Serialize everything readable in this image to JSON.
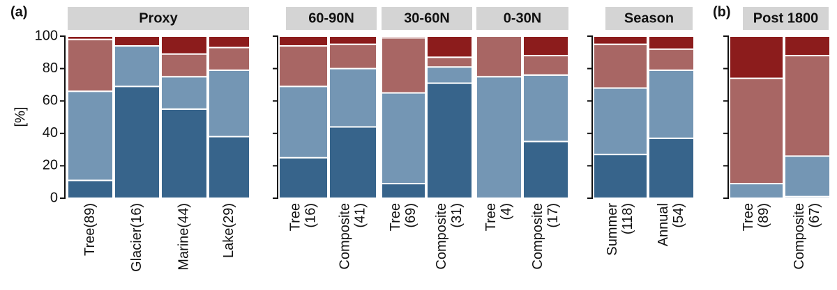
{
  "chart_data": [
    {
      "type": "bar",
      "stacked": true,
      "panel_label": "(a)",
      "title": "Proxy",
      "ylabel": "[%]",
      "ylim": [
        0,
        100
      ],
      "yticks": [
        0,
        20,
        40,
        60,
        80,
        100
      ],
      "categories": [
        [
          "Tree(89)"
        ],
        [
          "Glacier(16)"
        ],
        [
          "Marine(44)"
        ],
        [
          "Lake(29)"
        ]
      ],
      "series": [
        {
          "color": "#37648b",
          "values": [
            11,
            69,
            55,
            38
          ]
        },
        {
          "color": "#7496b4",
          "values": [
            55,
            25,
            20,
            41
          ]
        },
        {
          "color": "#a86664",
          "values": [
            32,
            0,
            14,
            14
          ]
        },
        {
          "color": "#8c1c1c",
          "values": [
            2,
            6,
            11,
            7
          ]
        }
      ]
    },
    {
      "type": "bar",
      "stacked": true,
      "title": "60-90N",
      "ylim": [
        0,
        100
      ],
      "categories": [
        [
          "Tree",
          "(16)"
        ],
        [
          "Composite",
          "(41)"
        ]
      ],
      "series": [
        {
          "color": "#37648b",
          "values": [
            25,
            44
          ]
        },
        {
          "color": "#7496b4",
          "values": [
            44,
            36
          ]
        },
        {
          "color": "#a86664",
          "values": [
            25,
            15
          ]
        },
        {
          "color": "#8c1c1c",
          "values": [
            6,
            5
          ]
        }
      ]
    },
    {
      "type": "bar",
      "stacked": true,
      "title": "30-60N",
      "ylim": [
        0,
        100
      ],
      "categories": [
        [
          "Tree",
          "(69)"
        ],
        [
          "Composite",
          "(31)"
        ]
      ],
      "series": [
        {
          "color": "#37648b",
          "values": [
            9,
            71
          ]
        },
        {
          "color": "#7496b4",
          "values": [
            56,
            10
          ]
        },
        {
          "color": "#a86664",
          "values": [
            34,
            6
          ]
        },
        {
          "color": "#8c1c1c",
          "values": [
            1,
            13
          ]
        }
      ]
    },
    {
      "type": "bar",
      "stacked": true,
      "title": "0-30N",
      "ylim": [
        0,
        100
      ],
      "categories": [
        [
          "Tree",
          "(4)"
        ],
        [
          "Composite",
          "(17)"
        ]
      ],
      "series": [
        {
          "color": "#37648b",
          "values": [
            0,
            35
          ]
        },
        {
          "color": "#7496b4",
          "values": [
            75,
            41
          ]
        },
        {
          "color": "#a86664",
          "values": [
            25,
            12
          ]
        },
        {
          "color": "#8c1c1c",
          "values": [
            0,
            12
          ]
        }
      ]
    },
    {
      "type": "bar",
      "stacked": true,
      "title": "Season",
      "ylim": [
        0,
        100
      ],
      "categories": [
        [
          "Summer",
          "(118)"
        ],
        [
          "Annual",
          "(54)"
        ]
      ],
      "series": [
        {
          "color": "#37648b",
          "values": [
            27,
            37
          ]
        },
        {
          "color": "#7496b4",
          "values": [
            41,
            42
          ]
        },
        {
          "color": "#a86664",
          "values": [
            27,
            13
          ]
        },
        {
          "color": "#8c1c1c",
          "values": [
            5,
            8
          ]
        }
      ]
    },
    {
      "type": "bar",
      "stacked": true,
      "panel_label": "(b)",
      "title": "Post 1800",
      "ylim": [
        0,
        100
      ],
      "categories": [
        [
          "Tree",
          "(89)"
        ],
        [
          "Composite",
          "(67)"
        ]
      ],
      "series": [
        {
          "color": "#37648b",
          "values": [
            0,
            1
          ]
        },
        {
          "color": "#7496b4",
          "values": [
            9,
            25
          ]
        },
        {
          "color": "#a86664",
          "values": [
            65,
            62
          ]
        },
        {
          "color": "#8c1c1c",
          "values": [
            26,
            12
          ]
        }
      ]
    }
  ]
}
